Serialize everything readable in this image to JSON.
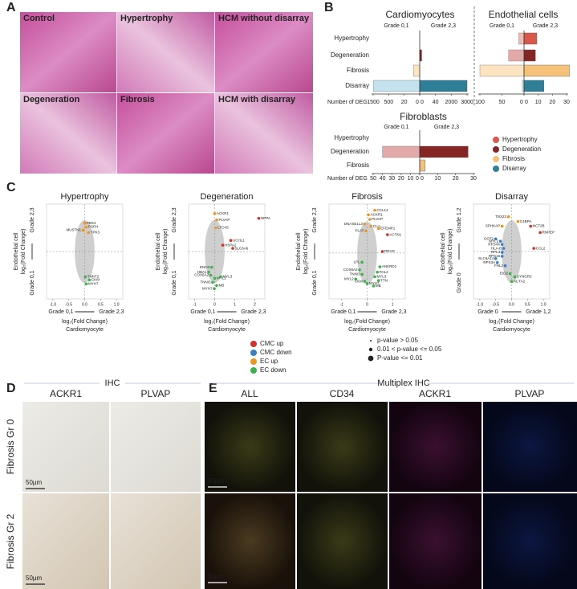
{
  "panel_labels": [
    "A",
    "B",
    "C",
    "D",
    "E"
  ],
  "histology": {
    "tiles": [
      "Control",
      "Hypertrophy",
      "HCM without disarray",
      "Degeneration",
      "Fibrosis",
      "HCM with disarray"
    ]
  },
  "deg_legend": [
    {
      "name": "Hypertrophy",
      "color": "#d9574b",
      "light": "#f2bab3"
    },
    {
      "name": "Degeneration",
      "color": "#862526",
      "light": "#e1a9a8"
    },
    {
      "name": "Fibrosis",
      "color": "#f6c27a",
      "light": "#fde3c0"
    },
    {
      "name": "Disarray",
      "color": "#2f7f99",
      "light": "#c4e2ee"
    }
  ],
  "deg_charts": [
    {
      "title": "Cardiomyocytes",
      "grade_left": "Grade 0,1",
      "grade_right": "Grade 2,3",
      "axis_label": "Number of DEG",
      "categories": [
        "Hypertrophy",
        "Degeneration",
        "Fibrosis",
        "Disarray"
      ],
      "left_ticks": [
        1500,
        500,
        20,
        0
      ],
      "right_ticks": [
        0,
        40,
        2000,
        3000
      ],
      "left_values": [
        0,
        0,
        8,
        1480
      ],
      "right_values": [
        0,
        5,
        0,
        3000
      ]
    },
    {
      "title": "Endothelial cells",
      "grade_left": "Grade 0,1",
      "grade_right": "Grade 2,3",
      "left_ticks": [
        100,
        50,
        0
      ],
      "right_ticks": [
        0,
        10,
        20,
        30
      ],
      "left_values": [
        12,
        35,
        100,
        4
      ],
      "right_values": [
        9,
        8,
        32,
        14
      ]
    },
    {
      "title": "Fibroblasts",
      "grade_left": "Grade 0,1",
      "grade_right": "Grade 2,3",
      "axis_label": "Number of DEG",
      "categories": [
        "Hypertrophy",
        "Degeneration",
        "Fibrosis"
      ],
      "left_ticks": [
        50,
        40,
        30,
        20,
        10,
        0
      ],
      "right_ticks": [
        0,
        10,
        20,
        30
      ],
      "left_values": [
        0,
        40,
        0
      ],
      "right_values": [
        0,
        27,
        3
      ]
    }
  ],
  "scatter_common": {
    "x_label": "log₂(Fold Change)",
    "x_sub": "Cardiomyocyte",
    "y_label1": "Endothelial cell",
    "y_label2": "log₂(Fold Change)"
  },
  "scatter_groups": [
    {
      "name": "CMC up",
      "color": "#d7302a"
    },
    {
      "name": "CMC down",
      "color": "#3b7fc2"
    },
    {
      "name": "EC up",
      "color": "#f0961e"
    },
    {
      "name": "EC down",
      "color": "#3db14a"
    }
  ],
  "pvalue_legend": [
    "p-value > 0.05",
    "0.01 < p-value <= 0.05",
    "P-value <= 0.01"
  ],
  "scatters": [
    {
      "title": "Hypertrophy",
      "x_low": "Grade 0,1",
      "x_high": "Grade 2,3",
      "y_low": "Grade 0,1",
      "y_high": "Grade 2,3",
      "xlim": [
        -1.2,
        1.2
      ],
      "ylim": [
        -3,
        3
      ],
      "xticks": [
        {
          "value": -1,
          "label": "-1.0"
        },
        -0.5,
        {
          "value": 0,
          "label": "0.0"
        },
        0.5,
        {
          "value": 1,
          "label": "1.0"
        }
      ],
      "points": [
        {
          "label": "PBX4",
          "x": 0,
          "y": 1.8,
          "group": "EC up"
        },
        {
          "label": "PSPH",
          "x": 0.05,
          "y": 1.55,
          "group": "EC up"
        },
        {
          "label": "MUSTN1",
          "x": -0.05,
          "y": 1.35,
          "group": "EC up"
        },
        {
          "label": "TPK3",
          "x": 0.12,
          "y": 1.2,
          "group": "EC up"
        },
        {
          "label": "TNNT2",
          "x": 0.02,
          "y": -1.6,
          "group": "EC down"
        },
        {
          "label": "CKM",
          "x": 0.15,
          "y": -1.8,
          "group": "EC down"
        },
        {
          "label": "MYH7",
          "x": 0.05,
          "y": -2.05,
          "group": "EC down"
        }
      ]
    },
    {
      "title": "Degeneration",
      "x_low": "Grade 0,1",
      "x_high": "Grade 2,3",
      "y_low": "Grade 0,1",
      "y_high": "Grade 2,3",
      "xlim": [
        -1.3,
        2.5
      ],
      "ylim": [
        -3,
        3
      ],
      "xticks": [
        -1,
        0,
        1,
        2
      ],
      "points": [
        {
          "label": "ACKR1",
          "x": 0,
          "y": 2.4,
          "group": "EC up"
        },
        {
          "label": "PLVAP",
          "x": 0.1,
          "y": 2.0,
          "group": "EC up"
        },
        {
          "label": "LTC4S",
          "x": 0.05,
          "y": 1.5,
          "group": "EC up"
        },
        {
          "label": "NPPA",
          "x": 2.2,
          "y": 2.1,
          "group": "CMC up"
        },
        {
          "label": "UCHL1",
          "x": 0.8,
          "y": 0.7,
          "group": "CMC up"
        },
        {
          "label": "HSPA2",
          "x": 0.4,
          "y": 0.4,
          "group": "CMC up"
        },
        {
          "label": "SLC6A6",
          "x": 0.9,
          "y": 0.2,
          "group": "CMC up"
        },
        {
          "label": "ENO3",
          "x": -0.15,
          "y": -1.0,
          "group": "EC down"
        },
        {
          "label": "HBA1",
          "x": -0.3,
          "y": -1.3,
          "group": "EC down"
        },
        {
          "label": "COX6A2",
          "x": -0.2,
          "y": -1.5,
          "group": "EC down"
        },
        {
          "label": "MYL2",
          "x": 0,
          "y": -1.7,
          "group": "EC down"
        },
        {
          "label": "MYL3",
          "x": 0.3,
          "y": -1.6,
          "group": "EC down"
        },
        {
          "label": "TNNI3",
          "x": -0.1,
          "y": -1.95,
          "group": "EC down"
        },
        {
          "label": "MB",
          "x": 0.1,
          "y": -2.15,
          "group": "EC down"
        },
        {
          "label": "MYH7",
          "x": -0.02,
          "y": -2.35,
          "group": "EC down"
        }
      ]
    },
    {
      "title": "Fibrosis",
      "x_low": "Grade 0,1",
      "x_high": "Grade 2,3",
      "y_low": "Grade 0,1",
      "y_high": "Grade 2,3",
      "xlim": [
        -1.5,
        1.5
      ],
      "ylim": [
        -3,
        3.2
      ],
      "xticks": [
        -1,
        0,
        1
      ],
      "points": [
        {
          "label": "CCL14",
          "x": 0.3,
          "y": 2.8,
          "group": "EC up"
        },
        {
          "label": "ACKR1",
          "x": 0.05,
          "y": 2.5,
          "group": "EC up"
        },
        {
          "label": "PLVAP",
          "x": 0.1,
          "y": 2.2,
          "group": "EC up"
        },
        {
          "label": "DNASE1L3",
          "x": -0.1,
          "y": 1.9,
          "group": "EC up"
        },
        {
          "label": "CLU",
          "x": 0.15,
          "y": 1.75,
          "group": "EC up"
        },
        {
          "label": "EFEMP1",
          "x": 0.45,
          "y": 1.6,
          "group": "EC up"
        },
        {
          "label": "PLAT",
          "x": -0.05,
          "y": 1.45,
          "group": "EC up"
        },
        {
          "label": "ACTN1",
          "x": 0.8,
          "y": 1.2,
          "group": "CMC up"
        },
        {
          "label": "RRAD",
          "x": 0.6,
          "y": 0.1,
          "group": "CMC up"
        },
        {
          "label": "LPL",
          "x": -0.2,
          "y": -0.6,
          "group": "EC down"
        },
        {
          "label": "ANKRD1",
          "x": 0.5,
          "y": -0.9,
          "group": "EC down"
        },
        {
          "label": "COX6A2",
          "x": -0.3,
          "y": -1.1,
          "group": "EC down"
        },
        {
          "label": "FHL2",
          "x": 0.4,
          "y": -1.25,
          "group": "EC down"
        },
        {
          "label": "TNNI3",
          "x": -0.2,
          "y": -1.4,
          "group": "EC down"
        },
        {
          "label": "MYL3",
          "x": 0.3,
          "y": -1.55,
          "group": "EC down"
        },
        {
          "label": "MYL2",
          "x": -0.45,
          "y": -1.7,
          "group": "EC down"
        },
        {
          "label": "CKM",
          "x": -0.1,
          "y": -1.85,
          "group": "EC down"
        },
        {
          "label": "TTN",
          "x": 0.45,
          "y": -1.8,
          "group": "EC down"
        },
        {
          "label": "MYH7",
          "x": 0,
          "y": -2.0,
          "group": "EC down"
        },
        {
          "label": "MB",
          "x": 0.25,
          "y": -2.15,
          "group": "EC down"
        }
      ]
    },
    {
      "title": "Disarray",
      "x_low": "Grade 0",
      "x_high": "Grade 1,2",
      "y_low": "Grade 0",
      "y_high": "Grade 1,2",
      "xlim": [
        -1.2,
        1.2
      ],
      "ylim": [
        -3,
        3
      ],
      "xticks": [
        {
          "value": -1,
          "label": "-1.0"
        },
        -0.5,
        {
          "value": 0,
          "label": "0.0"
        },
        0.5,
        {
          "value": 1,
          "label": "1.0"
        }
      ],
      "points": [
        {
          "label": "TBX22",
          "x": -0.1,
          "y": 2.2,
          "group": "EC up"
        },
        {
          "label": "C4BPA",
          "x": 0.2,
          "y": 1.9,
          "group": "EC up"
        },
        {
          "label": "SPHKAP",
          "x": -0.3,
          "y": 1.6,
          "group": "EC up"
        },
        {
          "label": "NCT2B",
          "x": 0.6,
          "y": 1.6,
          "group": "CMC up"
        },
        {
          "label": "RNPEP",
          "x": 0.9,
          "y": 1.2,
          "group": "CMC up"
        },
        {
          "label": "CCL2",
          "x": 0.7,
          "y": 0.2,
          "group": "CMC up"
        },
        {
          "label": "GOT2",
          "x": -0.5,
          "y": 0.8,
          "group": "CMC down"
        },
        {
          "label": "MYL2",
          "x": -0.35,
          "y": 0.65,
          "group": "CMC down"
        },
        {
          "label": "RPS4X",
          "x": -0.3,
          "y": 0.45,
          "group": "CMC down"
        },
        {
          "label": "HLA-B",
          "x": -0.25,
          "y": 0.2,
          "group": "CMC down"
        },
        {
          "label": "RPL4",
          "x": -0.3,
          "y": -0.05,
          "group": "CMC down"
        },
        {
          "label": "RPS16",
          "x": -0.3,
          "y": -0.3,
          "group": "CMC down"
        },
        {
          "label": "SLC6A14",
          "x": -0.5,
          "y": -0.45,
          "group": "CMC down"
        },
        {
          "label": "RPS3A",
          "x": -0.45,
          "y": -0.7,
          "group": "CMC down"
        },
        {
          "label": "FHL2",
          "x": -0.2,
          "y": -0.9,
          "group": "CMC down"
        },
        {
          "label": "EID2",
          "x": -0.05,
          "y": -1.4,
          "group": "EC down"
        },
        {
          "label": "SYNGR3",
          "x": 0.1,
          "y": -1.6,
          "group": "EC down"
        },
        {
          "label": "ACTA2",
          "x": 0,
          "y": -1.9,
          "group": "EC down"
        }
      ]
    }
  ],
  "ihc": {
    "title": "IHC",
    "columns": [
      "ACKR1",
      "PLVAP"
    ],
    "rows": [
      "Fibrosis Gr 0",
      "Fibrosis Gr 2"
    ],
    "scale_bar": "50µm"
  },
  "multiplex": {
    "title": "Multiplex IHC",
    "columns": [
      "ALL",
      "CD34",
      "ACKR1",
      "PLVAP"
    ],
    "scale_bar": "50µm"
  }
}
